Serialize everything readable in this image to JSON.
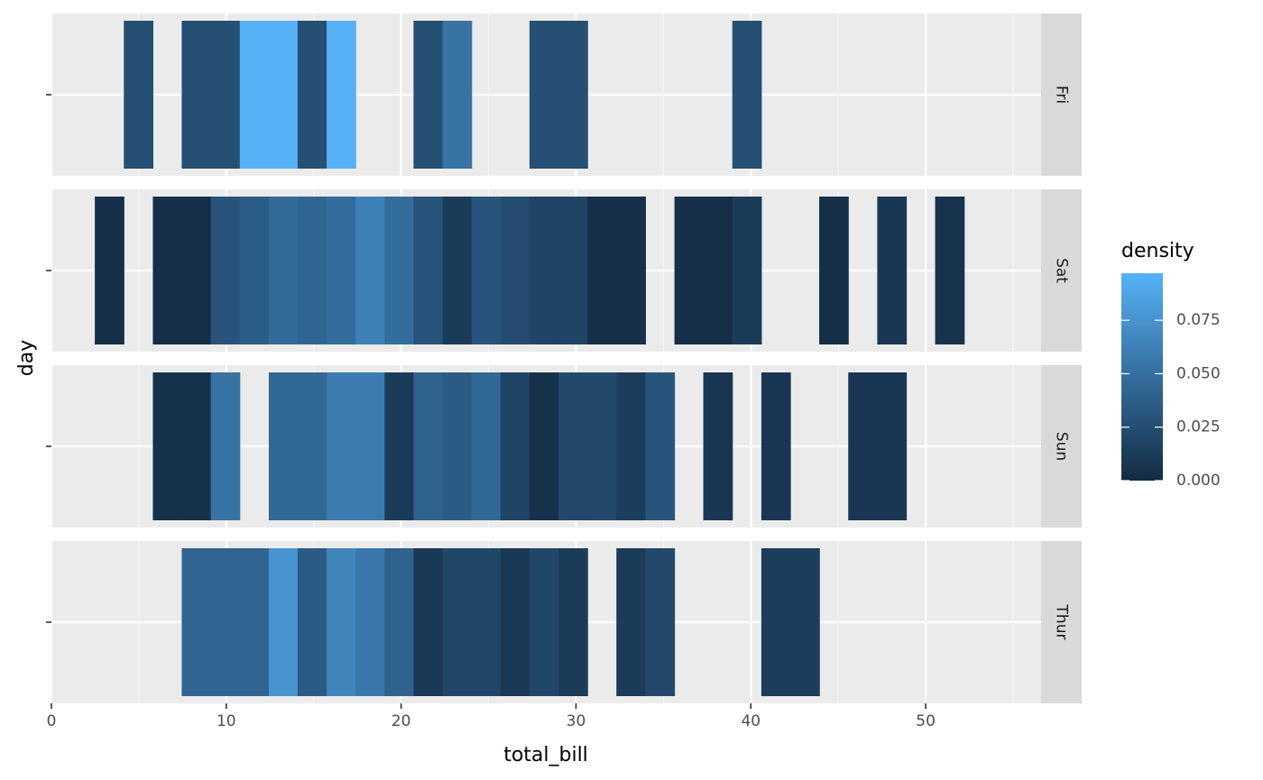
{
  "chart_data": {
    "type": "heatmap",
    "xlabel": "total_bill",
    "ylabel": "day",
    "xlim": [
      0,
      56.6
    ],
    "x_ticks": [
      0,
      10,
      20,
      30,
      40,
      50
    ],
    "grid": true,
    "legend": {
      "title": "density",
      "position": "right",
      "ticks": [
        "0.000",
        "0.025",
        "0.050",
        "0.075"
      ],
      "tick_values": [
        0,
        0.025,
        0.05,
        0.075
      ],
      "range": [
        0,
        0.097
      ],
      "color_low": "#132B43",
      "color_high": "#56B1F7"
    },
    "bin_width": 1.657,
    "facets": [
      {
        "label": "Fri",
        "bins": [
          {
            "x": 4.97,
            "density": 0.026
          },
          {
            "x": 8.28,
            "density": 0.026
          },
          {
            "x": 9.94,
            "density": 0.026
          },
          {
            "x": 11.6,
            "density": 0.096
          },
          {
            "x": 13.26,
            "density": 0.096
          },
          {
            "x": 14.91,
            "density": 0.026
          },
          {
            "x": 16.57,
            "density": 0.096
          },
          {
            "x": 21.54,
            "density": 0.026
          },
          {
            "x": 23.2,
            "density": 0.052
          },
          {
            "x": 28.17,
            "density": 0.026
          },
          {
            "x": 29.83,
            "density": 0.026
          },
          {
            "x": 39.77,
            "density": 0.026
          }
        ]
      },
      {
        "label": "Sat",
        "bins": [
          {
            "x": 3.31,
            "density": 0.003
          },
          {
            "x": 6.63,
            "density": 0.003
          },
          {
            "x": 8.28,
            "density": 0.003
          },
          {
            "x": 9.94,
            "density": 0.03
          },
          {
            "x": 11.6,
            "density": 0.036
          },
          {
            "x": 13.26,
            "density": 0.046
          },
          {
            "x": 14.91,
            "density": 0.042
          },
          {
            "x": 16.57,
            "density": 0.048
          },
          {
            "x": 18.23,
            "density": 0.062
          },
          {
            "x": 19.88,
            "density": 0.048
          },
          {
            "x": 21.54,
            "density": 0.03
          },
          {
            "x": 23.2,
            "density": 0.012
          },
          {
            "x": 24.86,
            "density": 0.03
          },
          {
            "x": 26.51,
            "density": 0.024
          },
          {
            "x": 28.17,
            "density": 0.018
          },
          {
            "x": 29.83,
            "density": 0.018
          },
          {
            "x": 31.49,
            "density": 0.003
          },
          {
            "x": 33.14,
            "density": 0.003
          },
          {
            "x": 36.46,
            "density": 0.003
          },
          {
            "x": 38.11,
            "density": 0.003
          },
          {
            "x": 39.77,
            "density": 0.012
          },
          {
            "x": 44.74,
            "density": 0.003
          },
          {
            "x": 48.06,
            "density": 0.009
          },
          {
            "x": 51.37,
            "density": 0.006
          }
        ]
      },
      {
        "label": "Sun",
        "bins": [
          {
            "x": 6.63,
            "density": 0.004
          },
          {
            "x": 8.28,
            "density": 0.004
          },
          {
            "x": 9.94,
            "density": 0.052
          },
          {
            "x": 13.26,
            "density": 0.044
          },
          {
            "x": 14.91,
            "density": 0.044
          },
          {
            "x": 16.57,
            "density": 0.058
          },
          {
            "x": 18.23,
            "density": 0.058
          },
          {
            "x": 19.88,
            "density": 0.012
          },
          {
            "x": 21.54,
            "density": 0.04
          },
          {
            "x": 23.2,
            "density": 0.035
          },
          {
            "x": 24.86,
            "density": 0.044
          },
          {
            "x": 26.51,
            "density": 0.018
          },
          {
            "x": 28.17,
            "density": 0.004
          },
          {
            "x": 29.83,
            "density": 0.022
          },
          {
            "x": 31.49,
            "density": 0.022
          },
          {
            "x": 33.14,
            "density": 0.013
          },
          {
            "x": 34.8,
            "density": 0.03
          },
          {
            "x": 38.11,
            "density": 0.009
          },
          {
            "x": 41.43,
            "density": 0.009
          },
          {
            "x": 46.4,
            "density": 0.009
          },
          {
            "x": 48.06,
            "density": 0.009
          }
        ]
      },
      {
        "label": "Thur",
        "bins": [
          {
            "x": 8.28,
            "density": 0.042
          },
          {
            "x": 9.94,
            "density": 0.042
          },
          {
            "x": 11.6,
            "density": 0.042
          },
          {
            "x": 13.26,
            "density": 0.075
          },
          {
            "x": 14.91,
            "density": 0.035
          },
          {
            "x": 16.57,
            "density": 0.065
          },
          {
            "x": 18.23,
            "density": 0.056
          },
          {
            "x": 19.88,
            "density": 0.04
          },
          {
            "x": 21.54,
            "density": 0.01
          },
          {
            "x": 23.2,
            "density": 0.02
          },
          {
            "x": 24.86,
            "density": 0.02
          },
          {
            "x": 26.51,
            "density": 0.01
          },
          {
            "x": 28.17,
            "density": 0.02
          },
          {
            "x": 29.83,
            "density": 0.012
          },
          {
            "x": 33.14,
            "density": 0.012
          },
          {
            "x": 34.8,
            "density": 0.022
          },
          {
            "x": 41.43,
            "density": 0.013
          },
          {
            "x": 43.09,
            "density": 0.013
          }
        ]
      }
    ]
  }
}
